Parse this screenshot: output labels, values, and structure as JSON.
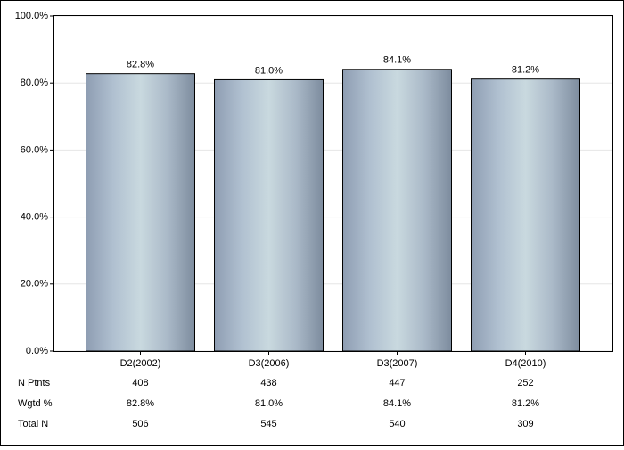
{
  "chart_data": {
    "type": "bar",
    "categories": [
      "D2(2002)",
      "D3(2006)",
      "D3(2007)",
      "D4(2010)"
    ],
    "values": [
      82.8,
      81.0,
      84.1,
      81.2
    ],
    "value_labels": [
      "82.8%",
      "81.0%",
      "84.1%",
      "81.2%"
    ],
    "ylim": [
      0,
      100
    ],
    "yticks": [
      {
        "value": 0,
        "label": "0.0%"
      },
      {
        "value": 20,
        "label": "20.0%"
      },
      {
        "value": 40,
        "label": "40.0%"
      },
      {
        "value": 60,
        "label": "60.0%"
      },
      {
        "value": 80,
        "label": "80.0%"
      },
      {
        "value": 100,
        "label": "100.0%"
      }
    ],
    "grid": true,
    "table": {
      "rows": [
        {
          "label": "N Ptnts",
          "cells": [
            "408",
            "438",
            "447",
            "252"
          ]
        },
        {
          "label": "Wgtd %",
          "cells": [
            "82.8%",
            "81.0%",
            "84.1%",
            "81.2%"
          ]
        },
        {
          "label": "Total N",
          "cells": [
            "506",
            "545",
            "540",
            "309"
          ]
        }
      ]
    }
  }
}
